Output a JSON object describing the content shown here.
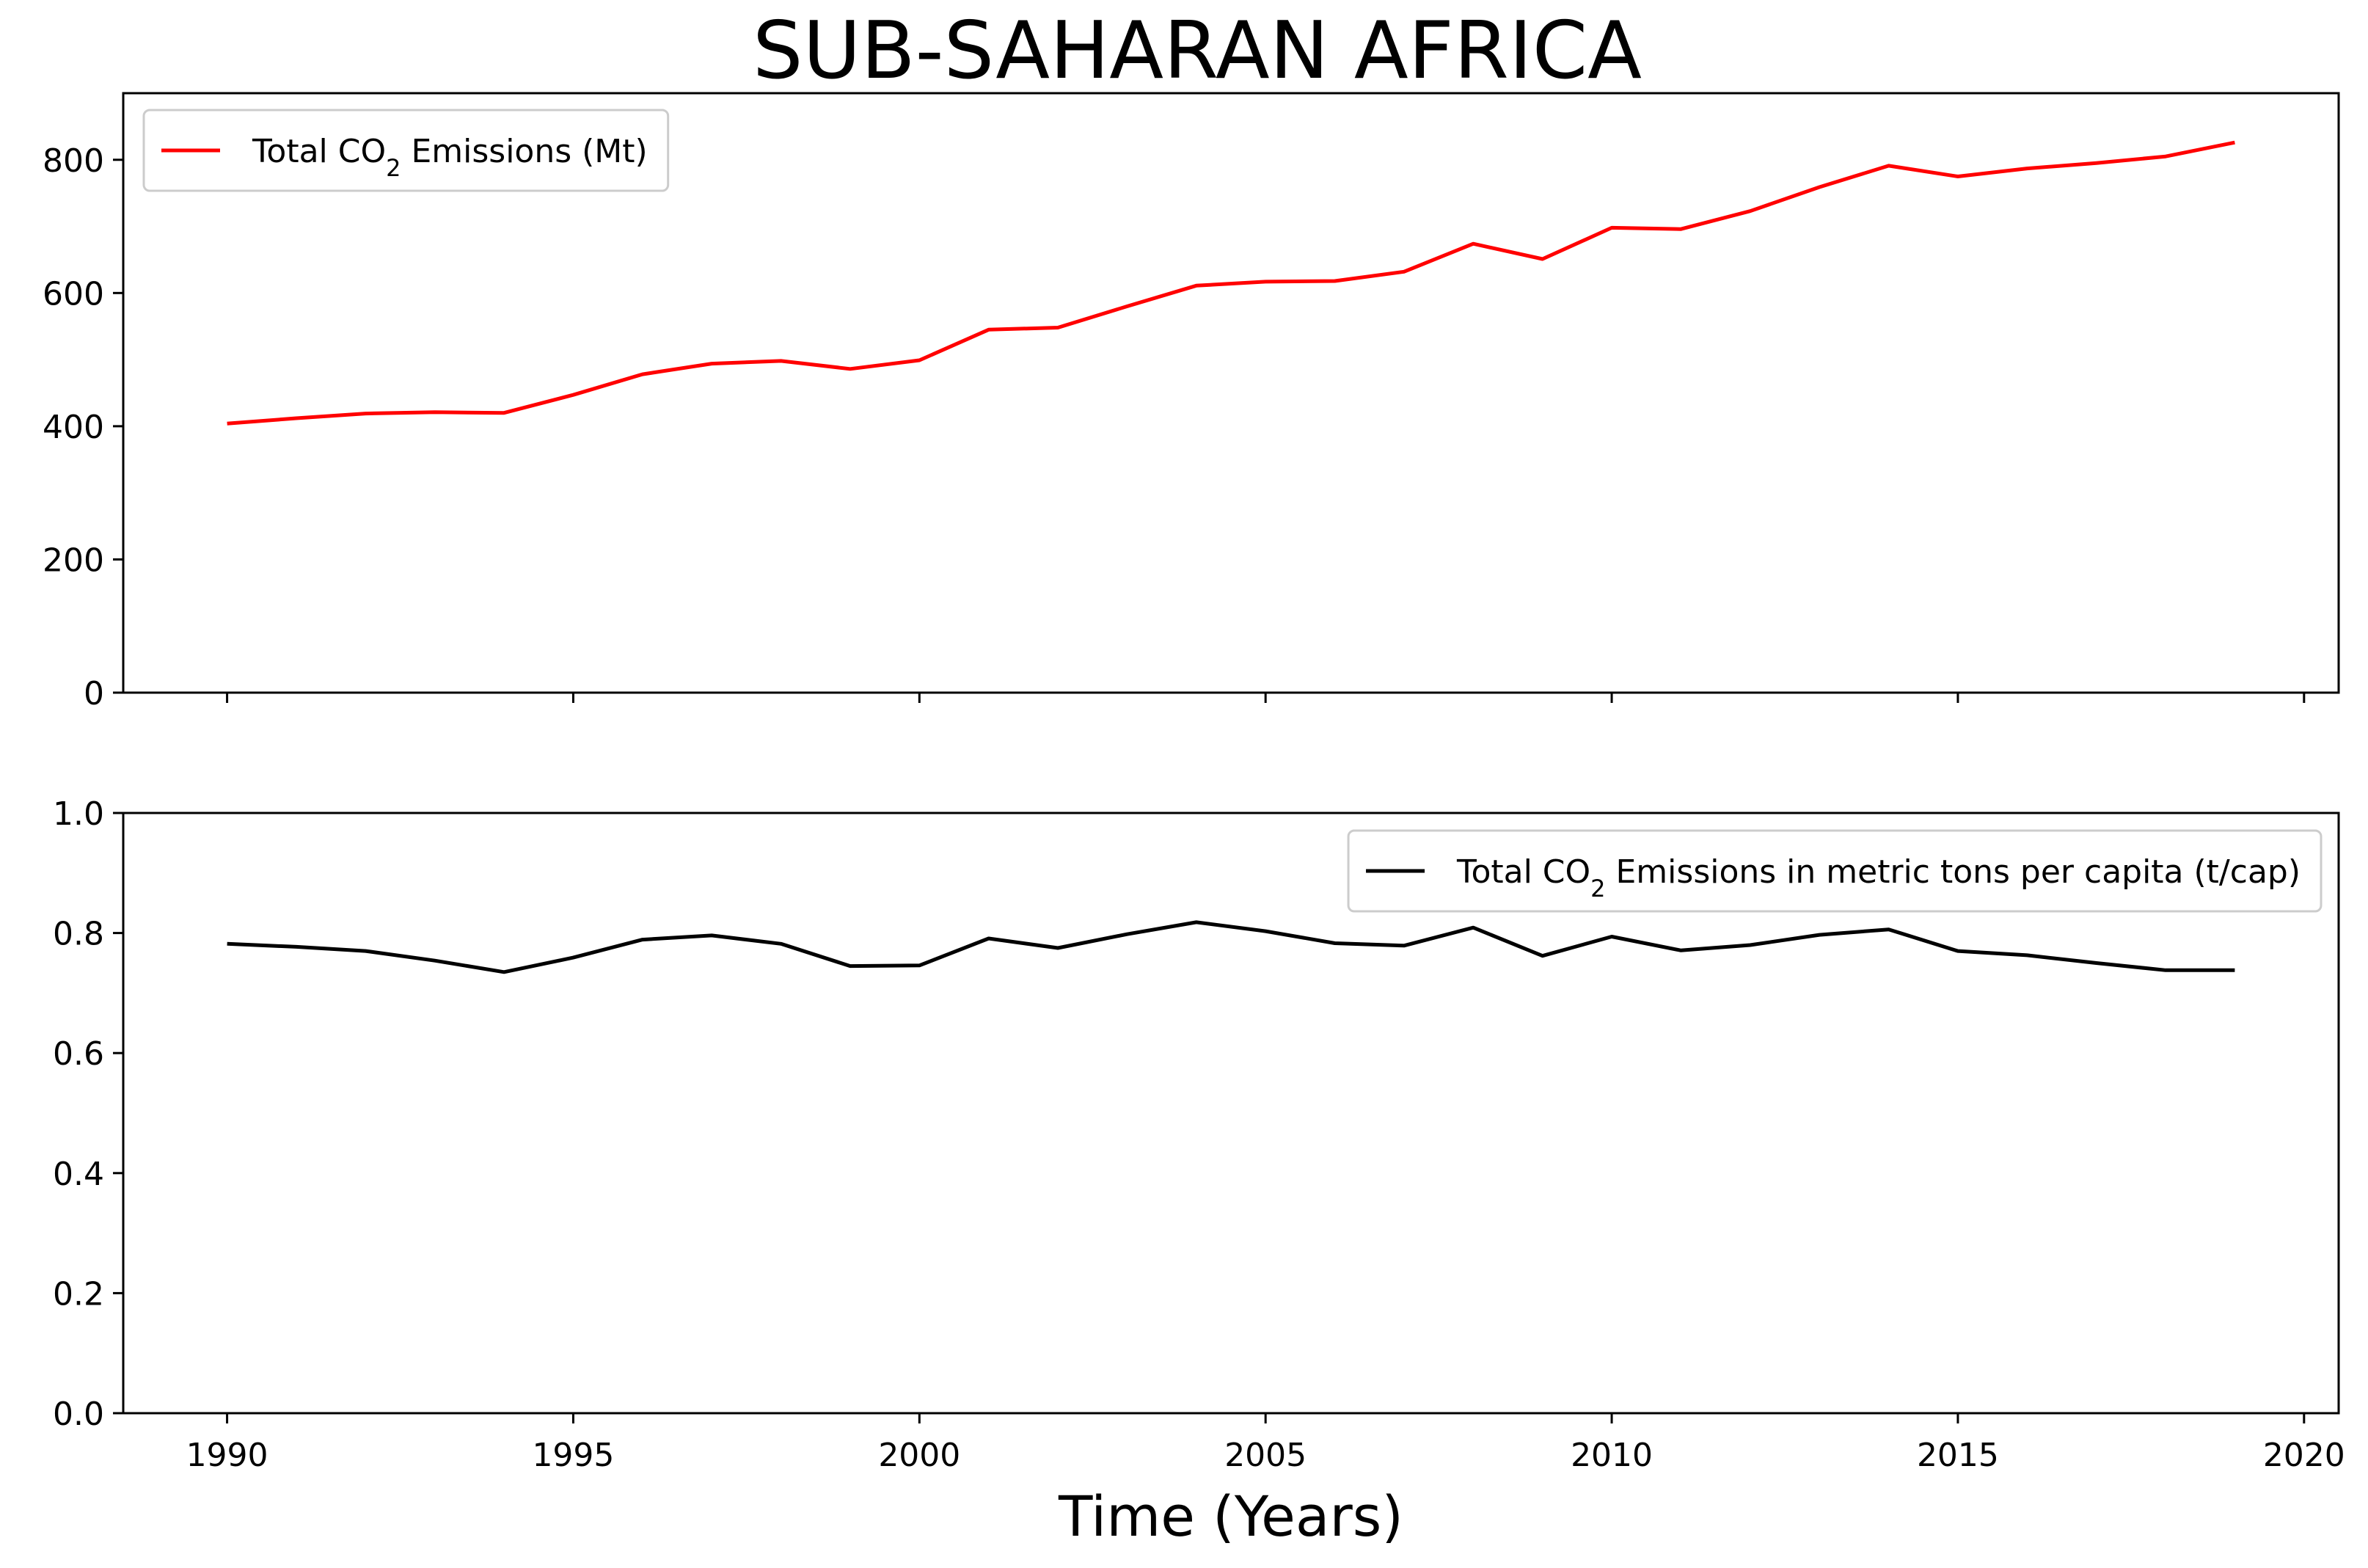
{
  "chart_data": [
    {
      "type": "line",
      "title": "SUB-SAHARAN AFRICA",
      "xlabel": "",
      "ylabel": "",
      "xlim": [
        1988.5,
        2020.5
      ],
      "ylim": [
        0,
        900
      ],
      "yticks": [
        0,
        200,
        400,
        600,
        800
      ],
      "xticks": [
        1990,
        1995,
        2000,
        2005,
        2010,
        2015,
        2020
      ],
      "grid": false,
      "legend_position": "top-left",
      "series": [
        {
          "name": "Total CO₂ Emissions (Mt)",
          "legend_prefix": "Total CO",
          "legend_subscript": "2",
          "legend_suffix": " Emissions (Mt)",
          "color": "#ff0000",
          "x": [
            1990,
            1991,
            1992,
            1993,
            1994,
            1995,
            1996,
            1997,
            1998,
            1999,
            2000,
            2001,
            2002,
            2003,
            2004,
            2005,
            2006,
            2007,
            2008,
            2009,
            2010,
            2011,
            2012,
            2013,
            2014,
            2015,
            2016,
            2017,
            2018,
            2019
          ],
          "values": [
            404,
            412,
            419,
            421,
            420,
            447,
            478,
            494,
            498,
            486,
            499,
            545,
            548,
            580,
            611,
            617,
            618,
            632,
            674,
            651,
            698,
            696,
            723,
            759,
            791,
            775,
            787,
            795,
            805,
            826
          ]
        }
      ]
    },
    {
      "type": "line",
      "title": "",
      "xlabel": "Time (Years)",
      "ylabel": "",
      "xlim": [
        1988.5,
        2020.5
      ],
      "ylim": [
        0.0,
        1.0
      ],
      "yticks": [
        0.0,
        0.2,
        0.4,
        0.6,
        0.8,
        1.0
      ],
      "xticks": [
        1990,
        1995,
        2000,
        2005,
        2010,
        2015,
        2020
      ],
      "grid": false,
      "legend_position": "top-right",
      "series": [
        {
          "name": "Total CO₂ Emissions in metric tons per capita (t/cap)",
          "legend_prefix": "Total CO",
          "legend_subscript": "2",
          "legend_suffix": " Emissions in metric tons per capita (t/cap)",
          "color": "#000000",
          "x": [
            1990,
            1991,
            1992,
            1993,
            1994,
            1995,
            1996,
            1997,
            1998,
            1999,
            2000,
            2001,
            2002,
            2003,
            2004,
            2005,
            2006,
            2007,
            2008,
            2009,
            2010,
            2011,
            2012,
            2013,
            2014,
            2015,
            2016,
            2017,
            2018,
            2019
          ],
          "values": [
            0.782,
            0.777,
            0.77,
            0.754,
            0.735,
            0.759,
            0.789,
            0.796,
            0.782,
            0.745,
            0.746,
            0.791,
            0.775,
            0.798,
            0.818,
            0.803,
            0.783,
            0.779,
            0.809,
            0.762,
            0.794,
            0.771,
            0.78,
            0.797,
            0.806,
            0.77,
            0.763,
            0.75,
            0.738,
            0.738
          ]
        }
      ]
    }
  ]
}
